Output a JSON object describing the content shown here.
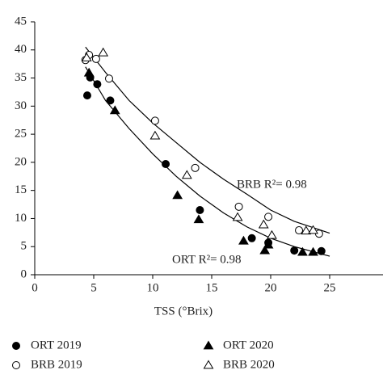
{
  "chart_data": {
    "type": "scatter",
    "x_label": "TSS (°Brix)",
    "xlim": [
      0,
      30
    ],
    "xticks": [
      0,
      5,
      10,
      15,
      20,
      25,
      30
    ],
    "ylim": [
      0,
      45
    ],
    "yticks": [
      0,
      5,
      10,
      15,
      20,
      25,
      30,
      35,
      40,
      45
    ],
    "grid": false,
    "series": [
      {
        "name": "ORT 2019",
        "color": "#000000",
        "marker": "circle",
        "filled": true,
        "x": [
          4.45,
          4.7,
          5.3,
          6.4,
          11.1,
          14.0,
          18.4,
          19.8,
          22.0,
          24.3
        ],
        "values": [
          31.9,
          35.1,
          33.9,
          31.0,
          19.7,
          11.5,
          6.5,
          5.7,
          4.3,
          4.2
        ]
      },
      {
        "name": "ORT 2020",
        "color": "#000000",
        "marker": "triangle",
        "filled": true,
        "x": [
          4.6,
          6.8,
          12.1,
          13.9,
          17.7,
          19.5,
          19.8,
          22.7,
          23.6
        ],
        "values": [
          35.9,
          29.2,
          14.1,
          9.8,
          6.0,
          4.3,
          5.3,
          4.0,
          4.0
        ]
      },
      {
        "name": "BRB 2019",
        "color": "#000000",
        "marker": "circle",
        "filled": false,
        "x": [
          4.3,
          4.6,
          5.2,
          6.3,
          10.2,
          13.6,
          17.3,
          19.8,
          22.4,
          24.1
        ],
        "values": [
          38.2,
          39.1,
          38.4,
          34.9,
          27.4,
          19.0,
          12.1,
          10.3,
          7.9,
          7.3
        ]
      },
      {
        "name": "BRB 2020",
        "color": "#000000",
        "marker": "triangle",
        "filled": false,
        "x": [
          4.4,
          5.8,
          10.2,
          12.9,
          17.2,
          19.4,
          20.1,
          23.0,
          23.6
        ],
        "values": [
          38.6,
          39.5,
          24.7,
          17.7,
          10.2,
          8.9,
          7.0,
          7.8,
          7.9
        ]
      }
    ],
    "trendlines": [
      {
        "label": "BRB R²= 0.98",
        "x": [
          4.3,
          6,
          8,
          10,
          12,
          14,
          16,
          18,
          20,
          22,
          25
        ],
        "values": [
          40.5,
          36,
          31,
          27,
          23.5,
          20,
          17,
          14.3,
          11.5,
          9.5,
          7.4
        ]
      },
      {
        "label": "ORT R²= 0.98",
        "x": [
          4.3,
          6,
          8,
          10,
          12,
          14,
          16,
          18,
          20,
          22,
          25
        ],
        "values": [
          37,
          31,
          26,
          21.5,
          17.5,
          14,
          11,
          8.5,
          6.5,
          5,
          3.3
        ]
      }
    ]
  }
}
